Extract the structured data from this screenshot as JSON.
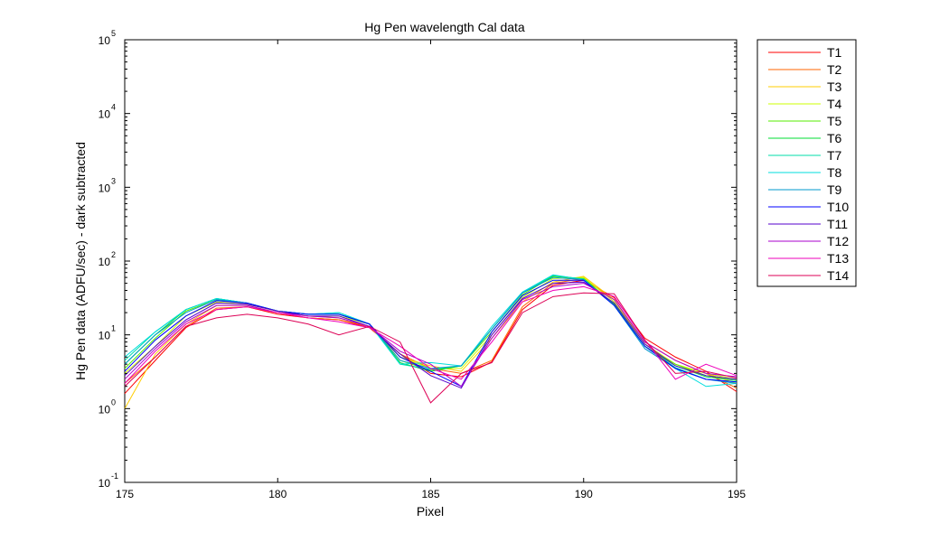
{
  "chart_data": {
    "type": "line",
    "title": "Hg Pen wavelength Cal data",
    "xlabel": "Pixel",
    "ylabel": "Hg Pen data (ADFU/sec) - dark subtracted",
    "xlim": [
      175,
      195
    ],
    "ylim": [
      0.1,
      100000
    ],
    "yscale": "log",
    "grid": false,
    "legend_position": "outside-right-top",
    "x_ticks": [
      "175",
      "180",
      "185",
      "190",
      "195"
    ],
    "y_ticks": [
      {
        "base": "10",
        "exp": "-1",
        "value": 0.1
      },
      {
        "base": "10",
        "exp": "0",
        "value": 1
      },
      {
        "base": "10",
        "exp": "1",
        "value": 10
      },
      {
        "base": "10",
        "exp": "2",
        "value": 100
      },
      {
        "base": "10",
        "exp": "3",
        "value": 1000
      },
      {
        "base": "10",
        "exp": "4",
        "value": 10000
      },
      {
        "base": "10",
        "exp": "5",
        "value": 100000
      }
    ],
    "x": [
      175,
      176,
      177,
      178,
      179,
      180,
      181,
      182,
      183,
      184,
      185,
      186,
      187,
      188,
      189,
      190,
      191,
      192,
      193,
      194,
      195
    ],
    "series": [
      {
        "name": "T1",
        "color": "#ff0000",
        "values": [
          1.6,
          4.5,
          12.5,
          22,
          24,
          19,
          17,
          16,
          12.5,
          5.5,
          3.0,
          2.7,
          4.3,
          22,
          47,
          55,
          32,
          9.0,
          5.0,
          3.2,
          1.7
        ]
      },
      {
        "name": "T2",
        "color": "#ff6600",
        "values": [
          2.2,
          5.0,
          13,
          23,
          24,
          20,
          17,
          16,
          13,
          5.5,
          3.5,
          3.0,
          4.5,
          24,
          50,
          58,
          30,
          8.0,
          4.5,
          3.0,
          1.9
        ]
      },
      {
        "name": "T3",
        "color": "#ffcc00",
        "values": [
          1.0,
          5.5,
          14,
          25,
          25,
          20,
          18,
          17,
          13,
          5.0,
          3.8,
          3.2,
          9.0,
          28,
          52,
          62,
          30,
          7.5,
          4.0,
          3.0,
          2.2
        ]
      },
      {
        "name": "T4",
        "color": "#ccff00",
        "values": [
          3.0,
          7.0,
          18,
          28,
          26,
          21,
          18,
          18,
          14,
          5.0,
          3.5,
          3.5,
          10,
          32,
          58,
          60,
          28,
          7.5,
          4.0,
          3.0,
          2.5
        ]
      },
      {
        "name": "T5",
        "color": "#55ee00",
        "values": [
          3.5,
          9.0,
          21,
          30,
          27,
          21,
          19,
          19,
          14,
          4.5,
          3.3,
          3.8,
          11,
          35,
          62,
          58,
          26,
          7.0,
          4.0,
          2.8,
          2.5
        ]
      },
      {
        "name": "T6",
        "color": "#00dd33",
        "values": [
          4.0,
          10,
          22,
          31,
          27,
          21,
          19,
          19,
          14,
          4.2,
          3.2,
          3.8,
          12,
          37,
          63,
          57,
          26,
          7.0,
          3.8,
          2.7,
          2.4
        ]
      },
      {
        "name": "T7",
        "color": "#00ddaa",
        "values": [
          4.5,
          11,
          22,
          31,
          27,
          21,
          19,
          20,
          14,
          4.0,
          3.4,
          3.8,
          12,
          37,
          64,
          57,
          25,
          7.0,
          3.6,
          2.5,
          2.3
        ]
      },
      {
        "name": "T8",
        "color": "#00dddd",
        "values": [
          5.0,
          11,
          22,
          31,
          27,
          21,
          19,
          20,
          14,
          4.0,
          4.2,
          3.8,
          13,
          38,
          65,
          56,
          25,
          7.0,
          3.5,
          2.0,
          2.2
        ]
      },
      {
        "name": "T9",
        "color": "#0099cc",
        "values": [
          4.0,
          10,
          20,
          30,
          27,
          21,
          19,
          19,
          14,
          4.5,
          3.5,
          3.8,
          12,
          37,
          60,
          56,
          25,
          6.5,
          3.5,
          2.5,
          2.2
        ]
      },
      {
        "name": "T10",
        "color": "#0000ff",
        "values": [
          3.2,
          8.5,
          18,
          29,
          27,
          21,
          19,
          19,
          14,
          5.0,
          3.2,
          2.0,
          11,
          34,
          55,
          55,
          25,
          7.0,
          3.5,
          2.5,
          2.3
        ]
      },
      {
        "name": "T11",
        "color": "#5500cc",
        "values": [
          2.8,
          7.0,
          16,
          27,
          26,
          21,
          18,
          18,
          13,
          5.5,
          2.8,
          1.9,
          10,
          31,
          50,
          52,
          27,
          7.5,
          3.8,
          2.8,
          2.5
        ]
      },
      {
        "name": "T12",
        "color": "#aa00cc",
        "values": [
          2.5,
          6.5,
          15,
          25,
          25,
          20,
          18,
          17,
          13,
          6.0,
          4.0,
          2.0,
          9.0,
          30,
          45,
          50,
          30,
          8.0,
          4.5,
          3.0,
          2.7
        ]
      },
      {
        "name": "T13",
        "color": "#ee00bb",
        "values": [
          2.2,
          6.0,
          14,
          22,
          24,
          20,
          17,
          15,
          12.5,
          7.0,
          3.5,
          2.5,
          8.0,
          28,
          40,
          45,
          33,
          8.5,
          2.5,
          4.0,
          2.8
        ]
      },
      {
        "name": "T14",
        "color": "#dd0055",
        "values": [
          2.0,
          5.0,
          13,
          17,
          19,
          17,
          14,
          10,
          13,
          8.0,
          1.2,
          3.0,
          4.2,
          20,
          33,
          37,
          36,
          8.5,
          3.0,
          3.2,
          2.6
        ]
      }
    ]
  }
}
